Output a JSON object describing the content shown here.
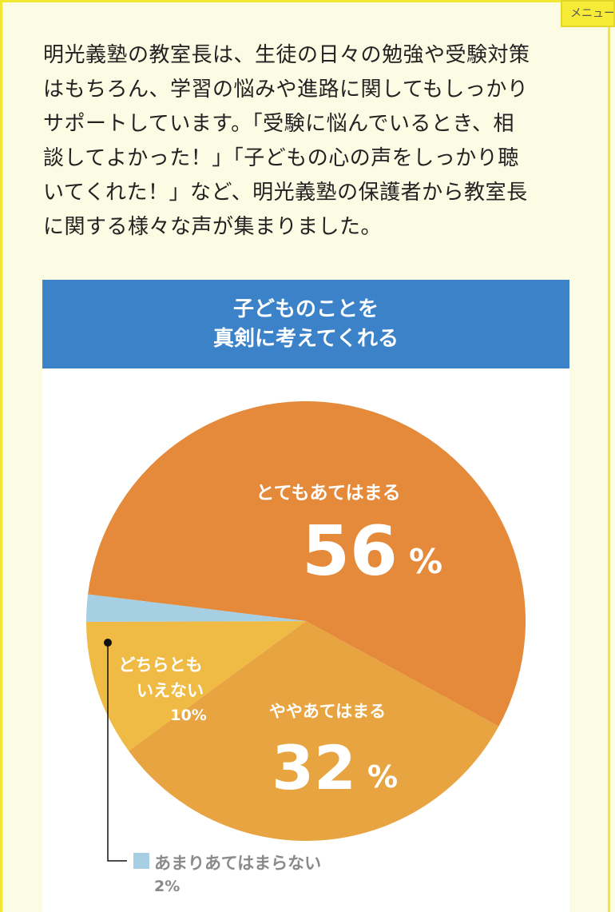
{
  "menu": {
    "label": "メニュー"
  },
  "intro": {
    "lines": [
      "明光義塾の教室長は、生徒の日々の勉強や受験対策",
      "はもちろん、学習の悩みや進路に関してもしっかり",
      "サポートしています。「受験に悩んでいるとき、相",
      "談してよかった！」「子どもの心の声をしっかり聴",
      "いてくれた！」など、明光義塾の保護者から教室長",
      "に関する様々な声が集まりました。"
    ]
  },
  "chart_data": {
    "type": "pie",
    "title_lines": [
      "子どものことを",
      "真剣に考えてくれる"
    ],
    "unit": "%",
    "slices": [
      {
        "label": "とてもあてはまる",
        "value": 56,
        "value_text": "56",
        "color": "#e5893a"
      },
      {
        "label": "ややあてはまる",
        "value": 32,
        "value_text": "32",
        "color": "#e7a440"
      },
      {
        "label_lines": [
          "どちらとも",
          "いえない"
        ],
        "value": 10,
        "value_text": "10%",
        "color": "#efbb45"
      },
      {
        "label": "あまりあてはまらない",
        "value": 2,
        "value_text": "2%",
        "color": "#a6cfe3"
      }
    ],
    "colors": {
      "header": "#3b82c9",
      "inner_label": "#ffffff",
      "outer_label": "#8a8a8a"
    }
  }
}
